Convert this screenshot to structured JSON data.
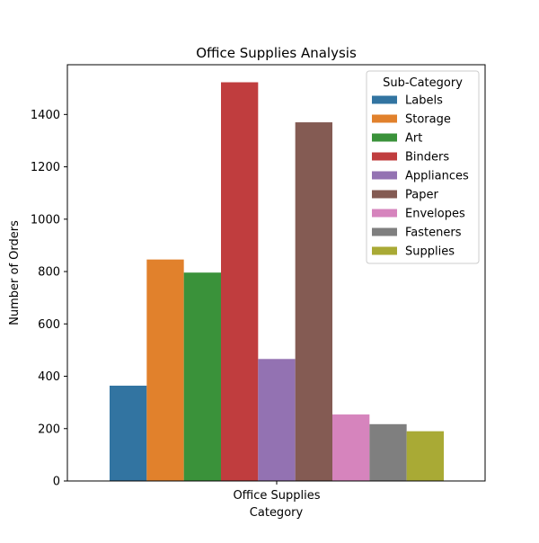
{
  "chart_data": {
    "type": "bar",
    "title": "Office Supplies Analysis",
    "xlabel": "Category",
    "ylabel": "Number of Orders",
    "categories": [
      "Office Supplies"
    ],
    "ylim": [
      0,
      1590
    ],
    "yticks": [
      0,
      200,
      400,
      600,
      800,
      1000,
      1200,
      1400
    ],
    "grid": false,
    "legend": {
      "title": "Sub-Category",
      "placement": "top-right"
    },
    "series": [
      {
        "name": "Labels",
        "values": [
          364
        ],
        "color": "#3274a1"
      },
      {
        "name": "Storage",
        "values": [
          846
        ],
        "color": "#e1812c"
      },
      {
        "name": "Art",
        "values": [
          796
        ],
        "color": "#3a923a"
      },
      {
        "name": "Binders",
        "values": [
          1523
        ],
        "color": "#c03d3e"
      },
      {
        "name": "Appliances",
        "values": [
          466
        ],
        "color": "#9372b2"
      },
      {
        "name": "Paper",
        "values": [
          1370
        ],
        "color": "#845b53"
      },
      {
        "name": "Envelopes",
        "values": [
          254
        ],
        "color": "#d684bd"
      },
      {
        "name": "Fasteners",
        "values": [
          217
        ],
        "color": "#7f7f7f"
      },
      {
        "name": "Supplies",
        "values": [
          190
        ],
        "color": "#a9aa35"
      }
    ]
  }
}
